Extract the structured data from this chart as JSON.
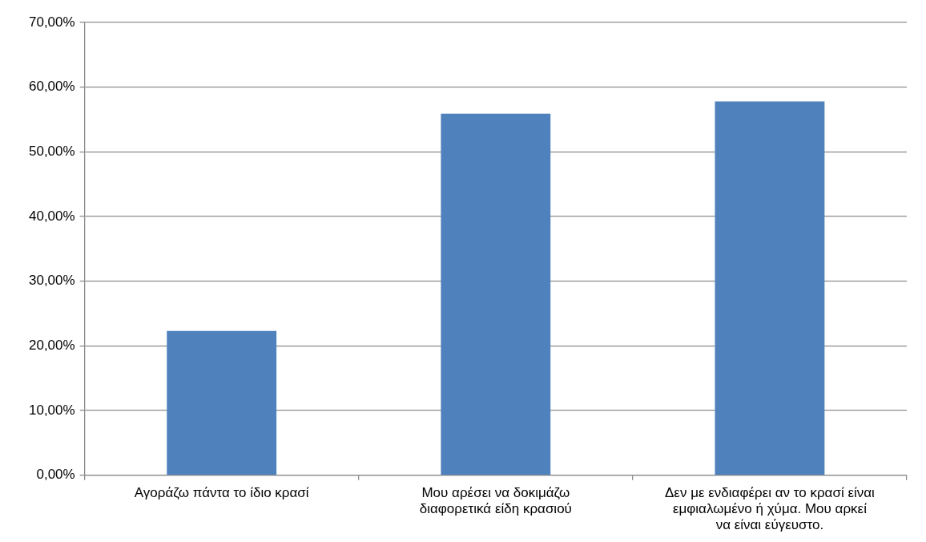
{
  "chart_data": {
    "type": "bar",
    "categories": [
      "Αγοράζω πάντα το ίδιο κρασί",
      "Μου αρέσει να δοκιμάζω διαφορετικά είδη κρασιού",
      "Δεν με ενδιαφέρει αν το κρασί είναι εμφιαλωμένο ή χύμα. Μου αρκεί να είναι εύγευστο."
    ],
    "values": [
      22.3,
      55.9,
      57.8
    ],
    "color": "#4f81bd",
    "ylim": [
      0,
      70
    ],
    "yticks": [
      {
        "value": 0,
        "label": "0,00%"
      },
      {
        "value": 10,
        "label": "10,00%"
      },
      {
        "value": 20,
        "label": "20,00%"
      },
      {
        "value": 30,
        "label": "30,00%"
      },
      {
        "value": 40,
        "label": "40,00%"
      },
      {
        "value": 50,
        "label": "50,00%"
      },
      {
        "value": 60,
        "label": "60,00%"
      },
      {
        "value": 70,
        "label": "70,00%"
      }
    ],
    "grid": "y",
    "legend": false
  }
}
